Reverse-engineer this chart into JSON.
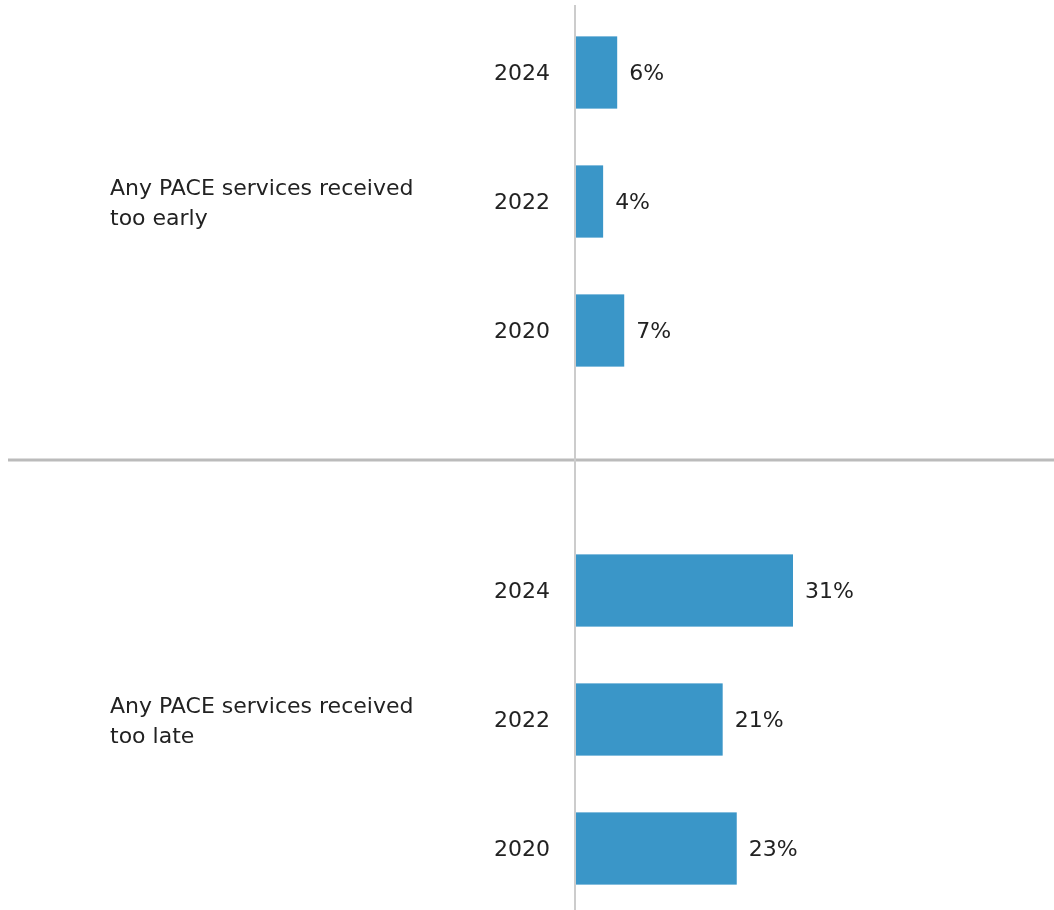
{
  "chart_data": [
    {
      "type": "bar",
      "orientation": "horizontal",
      "ylabel": "Any PACE services received too early",
      "categories": [
        "2024",
        "2022",
        "2020"
      ],
      "values": [
        6,
        4,
        7
      ],
      "value_labels": [
        "6%",
        "4%",
        "7%"
      ],
      "color": "#3a96c8"
    },
    {
      "type": "bar",
      "orientation": "horizontal",
      "ylabel": "Any PACE services received too late",
      "categories": [
        "2024",
        "2022",
        "2020"
      ],
      "values": [
        31,
        21,
        23
      ],
      "value_labels": [
        "31%",
        "21%",
        "23%"
      ],
      "color": "#3a96c8"
    }
  ]
}
